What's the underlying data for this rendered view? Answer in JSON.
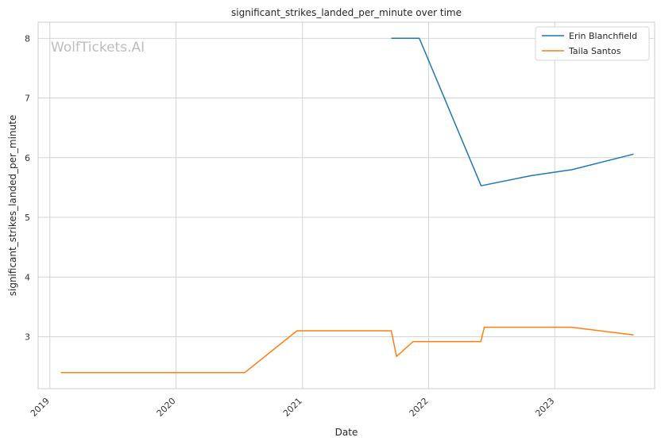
{
  "chart_data": {
    "type": "line",
    "title": "significant_strikes_landed_per_minute over time",
    "xlabel": "Date",
    "ylabel": "significant_strikes_landed_per_minute",
    "watermark": "WolfTickets.AI",
    "x_ticks": [
      "2019",
      "2020",
      "2021",
      "2022",
      "2023"
    ],
    "y_ticks": [
      "3",
      "4",
      "5",
      "6",
      "7",
      "8"
    ],
    "xlim": [
      "2018-11-28",
      "2023-10-17"
    ],
    "ylim": [
      2.13,
      8.27
    ],
    "grid": true,
    "legend_position": "top-right",
    "series": [
      {
        "name": "Erin Blanchfield",
        "color": "#1f77b4",
        "points": [
          {
            "x": "2021-09-15",
            "y": 8.0
          },
          {
            "x": "2021-12-05",
            "y": 8.0
          },
          {
            "x": "2022-06-02",
            "y": 5.53
          },
          {
            "x": "2022-10-25",
            "y": 5.7
          },
          {
            "x": "2023-02-20",
            "y": 5.8
          },
          {
            "x": "2023-08-17",
            "y": 6.06
          }
        ]
      },
      {
        "name": "Taila Santos",
        "color": "#ff7f0e",
        "points": [
          {
            "x": "2019-02-02",
            "y": 2.4
          },
          {
            "x": "2020-07-18",
            "y": 2.4
          },
          {
            "x": "2020-12-16",
            "y": 3.1
          },
          {
            "x": "2021-09-15",
            "y": 3.1
          },
          {
            "x": "2021-09-30",
            "y": 2.67
          },
          {
            "x": "2021-11-17",
            "y": 2.92
          },
          {
            "x": "2022-06-01",
            "y": 2.92
          },
          {
            "x": "2022-06-11",
            "y": 3.16
          },
          {
            "x": "2023-02-17",
            "y": 3.16
          },
          {
            "x": "2023-08-17",
            "y": 3.03
          }
        ]
      }
    ]
  }
}
